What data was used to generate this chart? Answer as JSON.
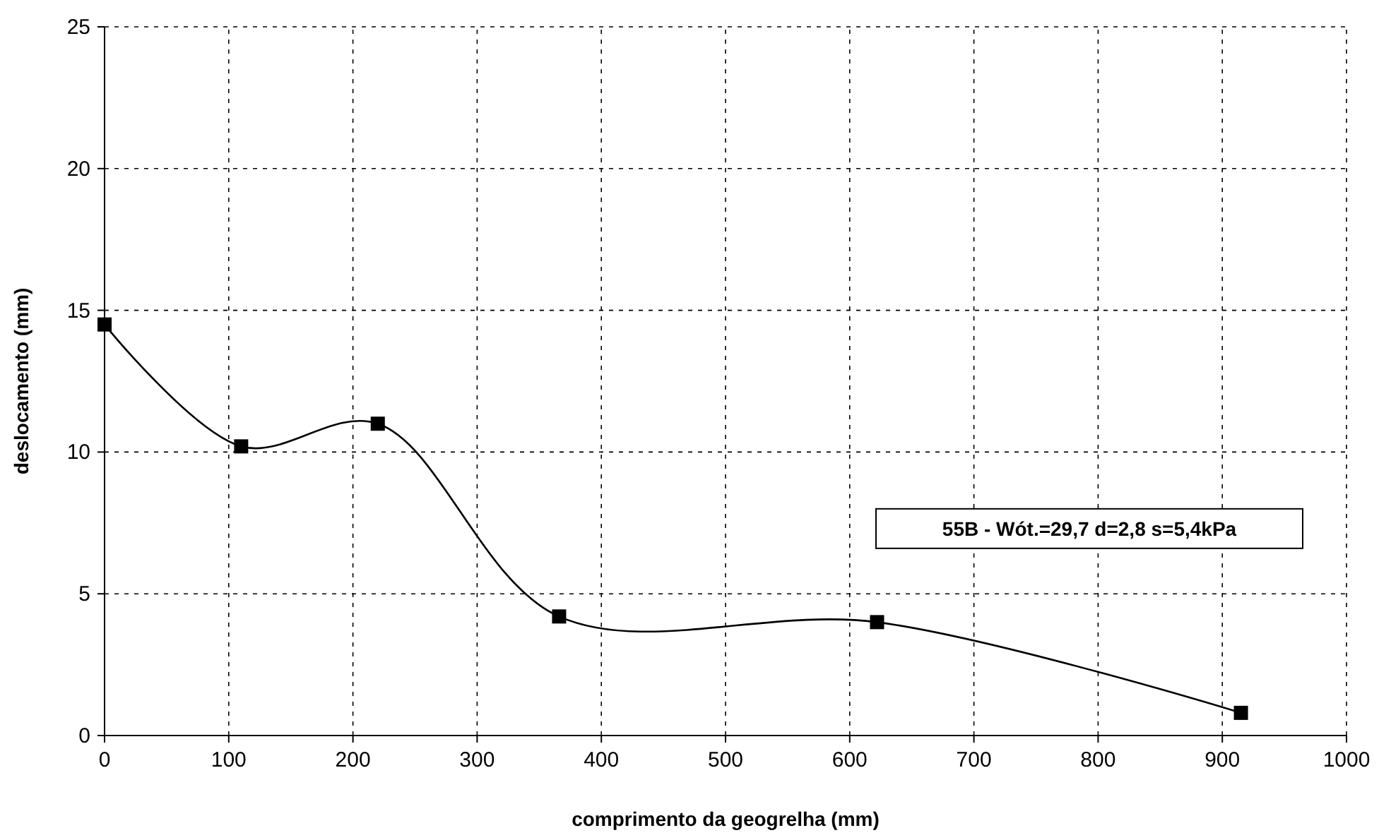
{
  "chart_data": {
    "type": "line",
    "xlabel": "comprimento da geogrelha (mm)",
    "ylabel": "deslocamento (mm)",
    "x": [
      0,
      110,
      220,
      366,
      622,
      915
    ],
    "series": [
      {
        "color": "#000000",
        "values": [
          14.5,
          10.2,
          11.0,
          4.2,
          4.0,
          0.8
        ]
      }
    ],
    "xlim": [
      0,
      1000
    ],
    "xticks": [
      0,
      100,
      200,
      300,
      400,
      500,
      600,
      700,
      800,
      900,
      1000
    ],
    "ylim": [
      0,
      25
    ],
    "yticks": [
      0,
      5,
      10,
      15,
      20,
      25
    ],
    "grid": true,
    "marker": "square",
    "line_style": "solid",
    "annotations": [
      "55B - Wót.=29,7  d=2,8  s=5,4kPa"
    ]
  }
}
